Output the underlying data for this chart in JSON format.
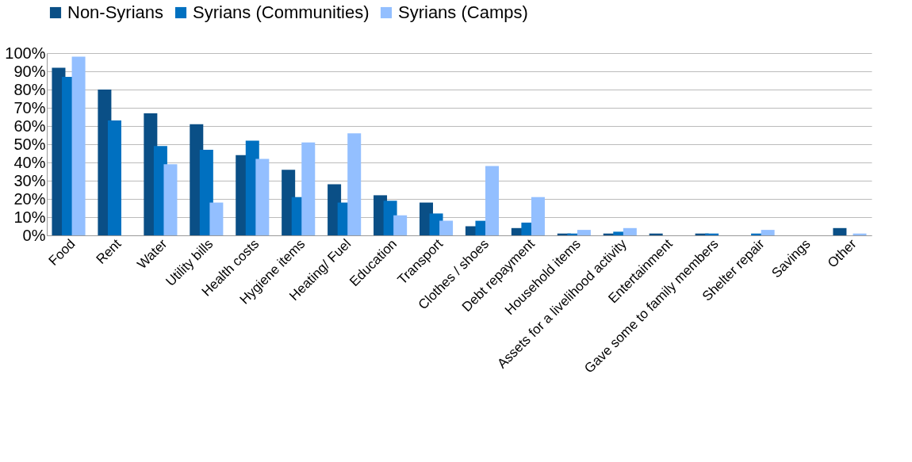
{
  "chart_data": {
    "type": "bar",
    "categories": [
      "Food",
      "Rent",
      "Water",
      "Utility bills",
      "Health costs",
      "Hygiene items",
      "Heating/ Fuel",
      "Education",
      "Transport",
      "Clothes / shoes",
      "Debt repayment",
      "Household items",
      "Assets for a livelihood activity",
      "Entertainment",
      "Gave some to family members",
      "Shelter repair",
      "Savings",
      "Other"
    ],
    "series": [
      {
        "name": "Non-Syrians",
        "color": "#0a4f86",
        "values": [
          92,
          80,
          67,
          61,
          44,
          36,
          28,
          22,
          18,
          5,
          4,
          1,
          1,
          1,
          1,
          0,
          0,
          4
        ]
      },
      {
        "name": "Syrians (Communities)",
        "color": "#0070c0",
        "values": [
          87,
          63,
          49,
          47,
          52,
          21,
          18,
          19,
          12,
          8,
          7,
          1,
          2,
          0,
          1,
          1,
          0,
          0
        ]
      },
      {
        "name": "Syrians (Camps)",
        "color": "#93bfff",
        "values": [
          98,
          0,
          39,
          18,
          42,
          51,
          56,
          11,
          8,
          38,
          21,
          3,
          4,
          0,
          0,
          3,
          0,
          1
        ]
      }
    ],
    "ylim": [
      0,
      100
    ],
    "yticks": [
      {
        "value": 0,
        "label": "0%"
      },
      {
        "value": 10,
        "label": "10%"
      },
      {
        "value": 20,
        "label": "20%"
      },
      {
        "value": 30,
        "label": "30%"
      },
      {
        "value": 40,
        "label": "40%"
      },
      {
        "value": 50,
        "label": "50%"
      },
      {
        "value": 60,
        "label": "60%"
      },
      {
        "value": 70,
        "label": "70%"
      },
      {
        "value": 80,
        "label": "80%"
      },
      {
        "value": 90,
        "label": "90%"
      },
      {
        "value": 100,
        "label": "100%"
      }
    ],
    "grid": "y",
    "legend": "top"
  }
}
